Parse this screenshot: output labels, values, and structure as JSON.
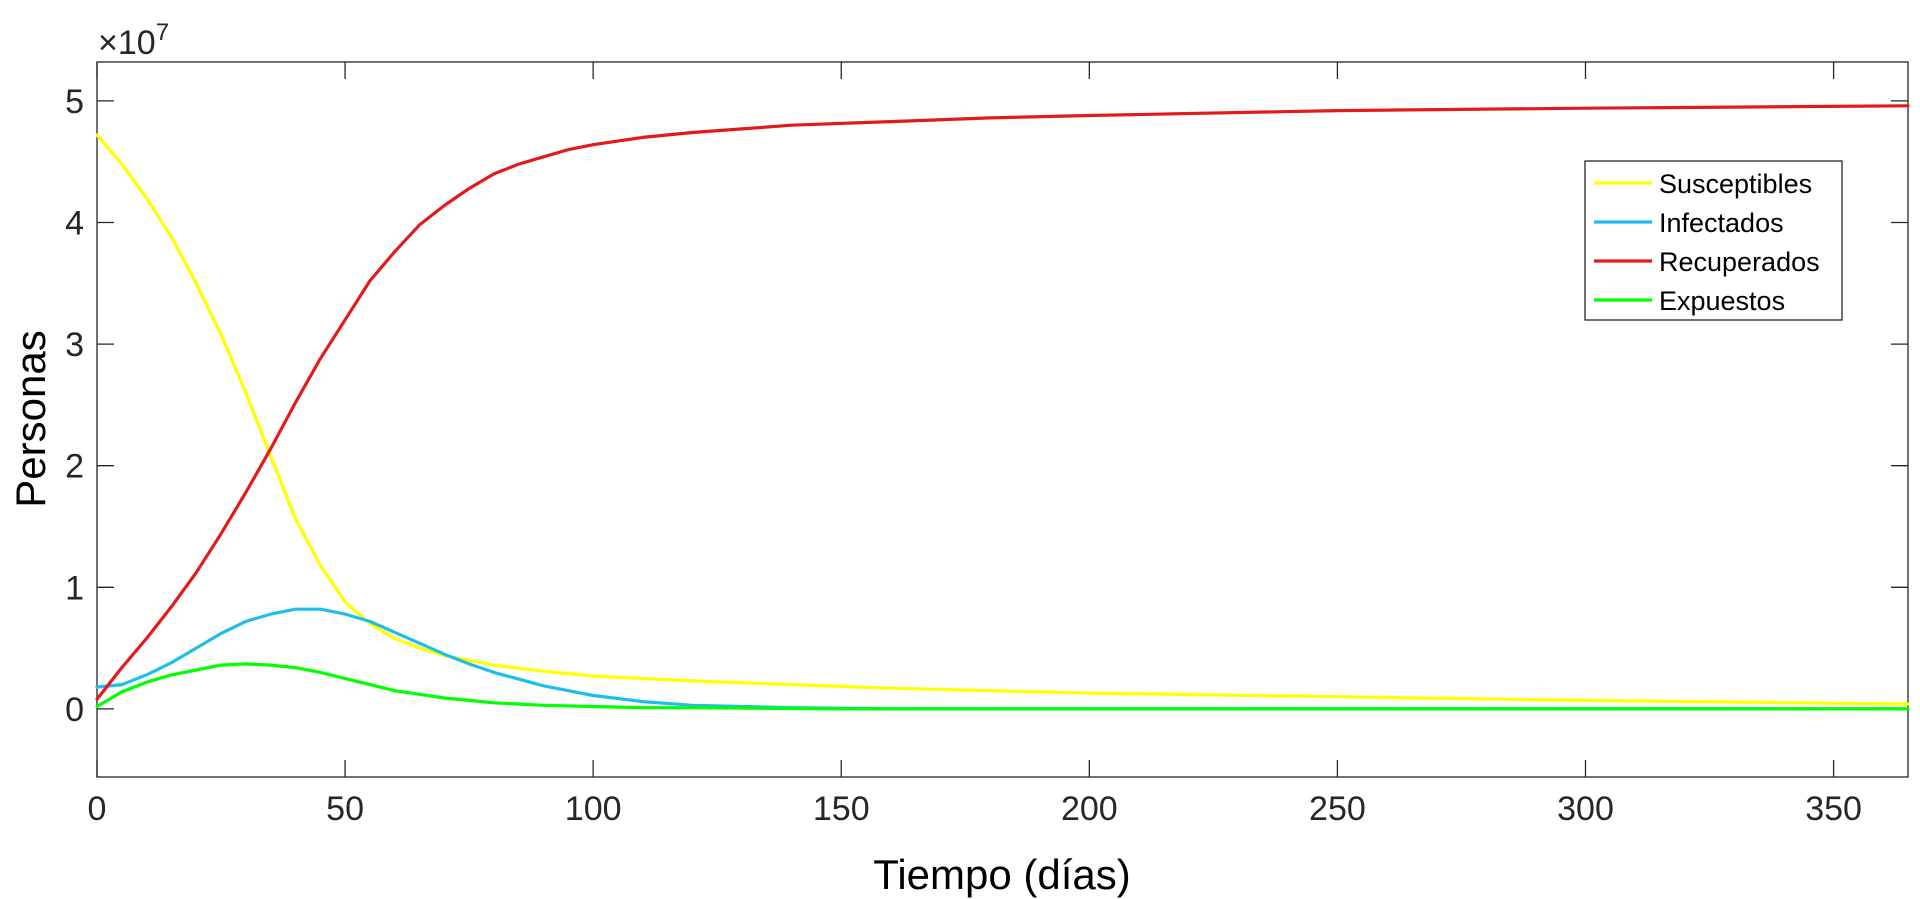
{
  "chart_data": {
    "type": "line",
    "xlabel": "Tiempo (días)",
    "ylabel": "Personas",
    "xlim": [
      0,
      365
    ],
    "ylim": [
      -0.56,
      5.32
    ],
    "y_multiplier_base": "×10",
    "y_multiplier_exp": "7",
    "xticks": [
      0,
      50,
      100,
      150,
      200,
      250,
      300,
      350
    ],
    "yticks": [
      0,
      1,
      2,
      3,
      4,
      5
    ],
    "grid": false,
    "legend_position": "top-right",
    "series": [
      {
        "name": "Susceptibles",
        "color": "#FFFF00",
        "x": [
          0,
          5,
          10,
          15,
          20,
          25,
          30,
          35,
          40,
          45,
          50,
          55,
          60,
          65,
          70,
          75,
          80,
          90,
          100,
          110,
          120,
          140,
          160,
          180,
          200,
          250,
          300,
          365
        ],
        "y": [
          4.72,
          4.48,
          4.2,
          3.88,
          3.5,
          3.08,
          2.6,
          2.08,
          1.56,
          1.18,
          0.88,
          0.7,
          0.58,
          0.5,
          0.44,
          0.4,
          0.36,
          0.31,
          0.27,
          0.25,
          0.23,
          0.2,
          0.17,
          0.15,
          0.13,
          0.1,
          0.07,
          0.04
        ]
      },
      {
        "name": "Infectados",
        "color": "#1EBEEB",
        "x": [
          0,
          5,
          10,
          15,
          20,
          25,
          30,
          35,
          40,
          45,
          50,
          55,
          60,
          65,
          70,
          75,
          80,
          90,
          100,
          110,
          120,
          140,
          160,
          200,
          250,
          300,
          365
        ],
        "y": [
          0.18,
          0.2,
          0.28,
          0.38,
          0.5,
          0.62,
          0.72,
          0.78,
          0.82,
          0.82,
          0.78,
          0.72,
          0.63,
          0.54,
          0.45,
          0.37,
          0.3,
          0.19,
          0.11,
          0.06,
          0.03,
          0.01,
          0.0,
          0.0,
          0.0,
          0.0,
          0.0
        ]
      },
      {
        "name": "Recuperados",
        "color": "#E31A1C",
        "x": [
          0,
          5,
          10,
          15,
          20,
          25,
          30,
          35,
          40,
          45,
          50,
          55,
          60,
          65,
          70,
          75,
          80,
          85,
          90,
          95,
          100,
          110,
          120,
          130,
          140,
          160,
          180,
          200,
          250,
          300,
          365
        ],
        "y": [
          0.08,
          0.34,
          0.58,
          0.84,
          1.12,
          1.44,
          1.78,
          2.14,
          2.52,
          2.88,
          3.2,
          3.52,
          3.76,
          3.98,
          4.14,
          4.28,
          4.4,
          4.48,
          4.54,
          4.6,
          4.64,
          4.7,
          4.74,
          4.77,
          4.8,
          4.83,
          4.86,
          4.88,
          4.92,
          4.94,
          4.96
        ]
      },
      {
        "name": "Expuestos",
        "color": "#00FF00",
        "x": [
          0,
          5,
          10,
          15,
          20,
          25,
          30,
          35,
          40,
          45,
          50,
          55,
          60,
          65,
          70,
          75,
          80,
          90,
          100,
          110,
          120,
          150,
          200,
          250,
          300,
          365
        ],
        "y": [
          0.02,
          0.14,
          0.22,
          0.28,
          0.32,
          0.36,
          0.37,
          0.36,
          0.34,
          0.3,
          0.25,
          0.2,
          0.15,
          0.12,
          0.09,
          0.07,
          0.05,
          0.03,
          0.02,
          0.01,
          0.01,
          0.0,
          0.0,
          0.0,
          0.0,
          0.0
        ]
      }
    ]
  }
}
